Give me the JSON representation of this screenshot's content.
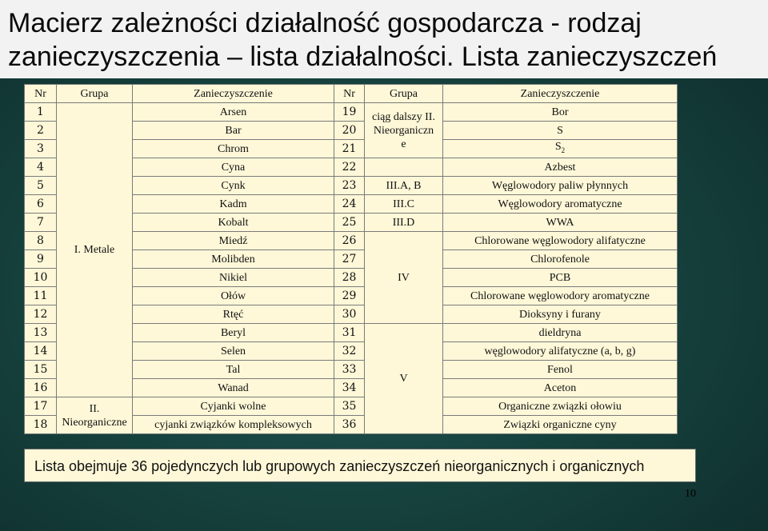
{
  "slide": {
    "title_line1": "Macierz zależności działalność gospodarcza - rodzaj",
    "title_line2": "zanieczyszczenia – lista działalności. Lista zanieczyszczeń"
  },
  "table": {
    "headers": [
      "Nr",
      "Grupa",
      "Zanieczyszczenie",
      "Nr",
      "Grupa",
      "Zanieczyszczenie"
    ],
    "left_rows": [
      {
        "nr": "1",
        "name": "Arsen"
      },
      {
        "nr": "2",
        "name": "Bar"
      },
      {
        "nr": "3",
        "name": "Chrom"
      },
      {
        "nr": "4",
        "name": "Cyna"
      },
      {
        "nr": "5",
        "name": "Cynk"
      },
      {
        "nr": "6",
        "name": "Kadm"
      },
      {
        "nr": "7",
        "name": "Kobalt"
      },
      {
        "nr": "8",
        "name": "Miedź"
      },
      {
        "nr": "9",
        "name": "Molibden"
      },
      {
        "nr": "10",
        "name": "Nikiel"
      },
      {
        "nr": "11",
        "name": "Ołów"
      },
      {
        "nr": "12",
        "name": "Rtęć"
      },
      {
        "nr": "13",
        "name": "Beryl"
      },
      {
        "nr": "14",
        "name": "Selen"
      },
      {
        "nr": "15",
        "name": "Tal"
      },
      {
        "nr": "16",
        "name": "Wanad"
      },
      {
        "nr": "17",
        "name": "Cyjanki wolne"
      },
      {
        "nr": "18",
        "name": "cyjanki związków kompleksowych"
      }
    ],
    "left_groups": {
      "g1": "I. Metale",
      "g2_line1": "II.",
      "g2_line2": "Nieorganiczne"
    },
    "right_rows": [
      {
        "nr": "19",
        "name": "Bor"
      },
      {
        "nr": "20",
        "name": "S"
      },
      {
        "nr": "21",
        "name": "S",
        "sub": "2"
      },
      {
        "nr": "22",
        "name": "Azbest"
      },
      {
        "nr": "23",
        "name": "Węglowodory paliw płynnych"
      },
      {
        "nr": "24",
        "name": "Węglowodory aromatyczne"
      },
      {
        "nr": "25",
        "name": "WWA"
      },
      {
        "nr": "26",
        "name": "Chlorowane węglowodory alifatyczne"
      },
      {
        "nr": "27",
        "name": "Chlorofenole"
      },
      {
        "nr": "28",
        "name": "PCB"
      },
      {
        "nr": "29",
        "name": "Chlorowane węglowodory aromatyczne"
      },
      {
        "nr": "30",
        "name": "Dioksyny i furany"
      },
      {
        "nr": "31",
        "name": "dieldryna"
      },
      {
        "nr": "32",
        "name": "węglowodory alifatyczne (a, b, g)"
      },
      {
        "nr": "33",
        "name": "Fenol"
      },
      {
        "nr": "34",
        "name": "Aceton"
      },
      {
        "nr": "35",
        "name": "Organiczne związki ołowiu"
      },
      {
        "nr": "36",
        "name": "Związki organiczne cyny"
      }
    ],
    "right_groups": {
      "cont_line1": "ciąg dalszy II.",
      "cont_line2": "Nieorganiczn",
      "cont_line3": "e",
      "g23": "III.A, B",
      "g24": "III.C",
      "g25": "III.D",
      "g4": "IV",
      "g5": "V"
    }
  },
  "footer": {
    "note": "Lista obejmuje 36 pojedynczych lub grupowych zanieczyszczeń nieorganicznych i organicznych",
    "page_number": "10"
  },
  "colors": {
    "table_background": "#fef8d8",
    "slide_background": "#174440",
    "title_band": "#f2f2f2"
  }
}
